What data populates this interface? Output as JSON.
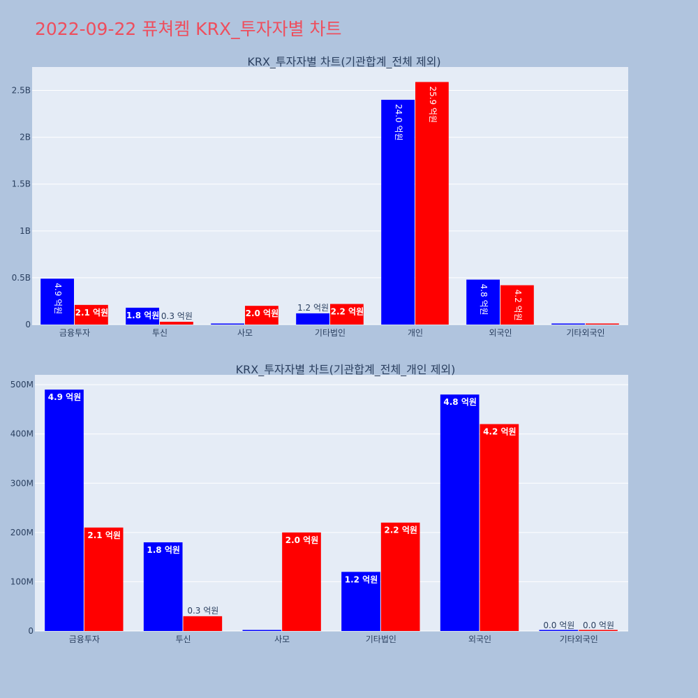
{
  "page_title": "2022-09-22 퓨쳐켐 KRX_투자자별 차트",
  "colors": {
    "background": "#b0c4de",
    "plot_bg": "#e5ecf6",
    "title": "#ee4e5d",
    "buy": "#0000ff",
    "sell": "#ff0000",
    "gridline": "#ffffff",
    "text": "#2a3f5f"
  },
  "chart_data": [
    {
      "type": "bar",
      "title": "KRX_투자자별 차트(기관합계_전체 제외)",
      "categories": [
        "금융투자",
        "투신",
        "사모",
        "기타법인",
        "개인",
        "외국인",
        "기타외국인"
      ],
      "series": [
        {
          "color": "#0000ff",
          "values": [
            490000000,
            180000000,
            0,
            120000000,
            2400000000,
            480000000,
            0
          ],
          "labels": [
            "4.9 억원",
            "1.8 억원",
            "",
            "1.2 억원",
            "24.0 억원",
            "4.8 억원",
            ""
          ]
        },
        {
          "color": "#ff0000",
          "values": [
            210000000,
            30000000,
            200000000,
            220000000,
            2590000000,
            420000000,
            0
          ],
          "labels": [
            "2.1 억원",
            "0.3 억원",
            "2.0 억원",
            "2.2 억원",
            "25.9 억원",
            "4.2 억원",
            ""
          ]
        }
      ],
      "ylim": [
        0,
        2750000000
      ],
      "yticks": [
        0,
        500000000,
        1000000000,
        1500000000,
        2000000000,
        2500000000
      ],
      "yticklabels": [
        "0",
        "0.5B",
        "1B",
        "1.5B",
        "2B",
        "2.5B"
      ],
      "grid": true
    },
    {
      "type": "bar",
      "title": "KRX_투자자별 차트(기관합계_전체_개인 제외)",
      "categories": [
        "금융투자",
        "투신",
        "사모",
        "기타법인",
        "외국인",
        "기타외국인"
      ],
      "series": [
        {
          "color": "#0000ff",
          "values": [
            490000000,
            180000000,
            0,
            120000000,
            480000000,
            0
          ],
          "labels": [
            "4.9 억원",
            "1.8 억원",
            "",
            "1.2 억원",
            "4.8 억원",
            "0.0 억원"
          ]
        },
        {
          "color": "#ff0000",
          "values": [
            210000000,
            30000000,
            200000000,
            220000000,
            420000000,
            0
          ],
          "labels": [
            "2.1 억원",
            "0.3 억원",
            "2.0 억원",
            "2.2 억원",
            "4.2 억원",
            "0.0 억원"
          ]
        }
      ],
      "ylim": [
        0,
        520000000
      ],
      "yticks": [
        0,
        100000000,
        200000000,
        300000000,
        400000000,
        500000000
      ],
      "yticklabels": [
        "0",
        "100M",
        "200M",
        "300M",
        "400M",
        "500M"
      ],
      "grid": true
    }
  ]
}
